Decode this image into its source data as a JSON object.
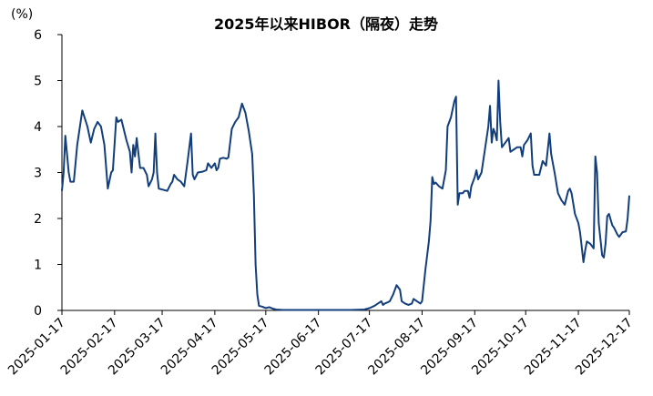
{
  "chart_data": {
    "type": "line",
    "title": "2025年以来HIBOR（隔夜）走势",
    "y_label": "(%)",
    "x": [
      "2025-01-17",
      "2025-01-18",
      "2025-01-19",
      "2025-01-21",
      "2025-01-22",
      "2025-01-24",
      "2025-01-26",
      "2025-01-29",
      "2025-02-01",
      "2025-02-03",
      "2025-02-05",
      "2025-02-07",
      "2025-02-09",
      "2025-02-11",
      "2025-02-13",
      "2025-02-15",
      "2025-02-16",
      "2025-02-18",
      "2025-02-19",
      "2025-02-21",
      "2025-02-24",
      "2025-02-26",
      "2025-02-27",
      "2025-02-28",
      "2025-03-01",
      "2025-03-02",
      "2025-03-04",
      "2025-03-06",
      "2025-03-08",
      "2025-03-09",
      "2025-03-11",
      "2025-03-12",
      "2025-03-13",
      "2025-03-14",
      "2025-03-15",
      "2025-03-18",
      "2025-03-20",
      "2025-03-22",
      "2025-03-23",
      "2025-03-24",
      "2025-03-26",
      "2025-03-28",
      "2025-03-30",
      "2025-04-01",
      "2025-04-03",
      "2025-04-04",
      "2025-04-05",
      "2025-04-07",
      "2025-04-10",
      "2025-04-12",
      "2025-04-13",
      "2025-04-15",
      "2025-04-17",
      "2025-04-18",
      "2025-04-19",
      "2025-04-20",
      "2025-04-22",
      "2025-04-24",
      "2025-04-25",
      "2025-04-27",
      "2025-04-29",
      "2025-05-01",
      "2025-05-03",
      "2025-05-05",
      "2025-05-07",
      "2025-05-09",
      "2025-05-10",
      "2025-05-11",
      "2025-05-12",
      "2025-05-13",
      "2025-05-15",
      "2025-05-17",
      "2025-05-19",
      "2025-05-21",
      "2025-05-23",
      "2025-05-27",
      "2025-06-16",
      "2025-07-06",
      "2025-07-14",
      "2025-07-17",
      "2025-07-20",
      "2025-07-22",
      "2025-07-24",
      "2025-07-25",
      "2025-07-26",
      "2025-07-28",
      "2025-07-29",
      "2025-07-31",
      "2025-08-02",
      "2025-08-04",
      "2025-08-05",
      "2025-08-07",
      "2025-08-09",
      "2025-08-11",
      "2025-08-12",
      "2025-08-14",
      "2025-08-16",
      "2025-08-17",
      "2025-08-19",
      "2025-08-21",
      "2025-08-22",
      "2025-08-23",
      "2025-08-24",
      "2025-08-25",
      "2025-08-27",
      "2025-08-29",
      "2025-08-31",
      "2025-09-01",
      "2025-09-03",
      "2025-09-05",
      "2025-09-06",
      "2025-09-07",
      "2025-09-08",
      "2025-09-10",
      "2025-09-11",
      "2025-09-13",
      "2025-09-14",
      "2025-09-15",
      "2025-09-17",
      "2025-09-18",
      "2025-09-19",
      "2025-09-21",
      "2025-09-23",
      "2025-09-25",
      "2025-09-26",
      "2025-09-27",
      "2025-09-28",
      "2025-09-29",
      "2025-09-30",
      "2025-10-01",
      "2025-10-02",
      "2025-10-03",
      "2025-10-05",
      "2025-10-07",
      "2025-10-08",
      "2025-10-10",
      "2025-10-12",
      "2025-10-14",
      "2025-10-15",
      "2025-10-16",
      "2025-10-18",
      "2025-10-20",
      "2025-10-21",
      "2025-10-22",
      "2025-10-25",
      "2025-10-27",
      "2025-10-29",
      "2025-10-31",
      "2025-11-01",
      "2025-11-03",
      "2025-11-05",
      "2025-11-07",
      "2025-11-09",
      "2025-11-11",
      "2025-11-12",
      "2025-11-13",
      "2025-11-15",
      "2025-11-17",
      "2025-11-18",
      "2025-11-20",
      "2025-11-21",
      "2025-11-22",
      "2025-11-24",
      "2025-11-26",
      "2025-11-27",
      "2025-11-28",
      "2025-11-29",
      "2025-12-01",
      "2025-12-02",
      "2025-12-03",
      "2025-12-04",
      "2025-12-05",
      "2025-12-07",
      "2025-12-08",
      "2025-12-10",
      "2025-12-11",
      "2025-12-13",
      "2025-12-15",
      "2025-12-16",
      "2025-12-17"
    ],
    "series": [
      {
        "color": "#123e7c",
        "values": [
          2.6,
          3.0,
          3.8,
          3.0,
          2.8,
          2.8,
          3.6,
          4.35,
          4.0,
          3.65,
          3.95,
          4.1,
          4.0,
          3.6,
          2.65,
          3.0,
          3.05,
          4.2,
          4.1,
          4.15,
          3.7,
          3.45,
          3.0,
          3.6,
          3.35,
          3.75,
          3.1,
          3.1,
          2.95,
          2.7,
          2.85,
          3.0,
          3.85,
          3.0,
          2.65,
          2.62,
          2.6,
          2.75,
          2.8,
          2.95,
          2.85,
          2.8,
          2.7,
          3.25,
          3.85,
          2.95,
          2.85,
          3.0,
          3.02,
          3.05,
          3.2,
          3.1,
          3.2,
          3.05,
          3.1,
          3.3,
          3.32,
          3.3,
          3.33,
          3.95,
          4.1,
          4.2,
          4.5,
          4.3,
          3.9,
          3.4,
          2.5,
          1.0,
          0.35,
          0.1,
          0.08,
          0.05,
          0.07,
          0.04,
          0.02,
          0.01,
          0.01,
          0.01,
          0.02,
          0.05,
          0.1,
          0.15,
          0.2,
          0.12,
          0.15,
          0.18,
          0.2,
          0.35,
          0.55,
          0.45,
          0.2,
          0.15,
          0.12,
          0.15,
          0.25,
          0.2,
          0.15,
          0.2,
          0.9,
          1.5,
          1.95,
          2.9,
          2.75,
          2.78,
          2.7,
          2.65,
          3.05,
          4.0,
          4.2,
          4.55,
          4.65,
          2.3,
          2.55,
          2.55,
          2.6,
          2.6,
          2.45,
          2.7,
          2.9,
          3.05,
          2.85,
          3.0,
          3.5,
          4.0,
          4.45,
          3.65,
          3.95,
          3.85,
          3.7,
          5.0,
          4.1,
          3.55,
          3.65,
          3.75,
          3.45,
          3.5,
          3.55,
          3.55,
          3.35,
          3.6,
          3.7,
          3.85,
          3.15,
          2.95,
          2.95,
          3.25,
          3.15,
          3.85,
          3.4,
          3.0,
          2.55,
          2.4,
          2.3,
          2.6,
          2.65,
          2.55,
          2.1,
          1.9,
          1.7,
          1.05,
          1.3,
          1.5,
          1.45,
          1.35,
          3.35,
          3.0,
          1.9,
          1.2,
          1.15,
          1.45,
          2.05,
          2.1,
          1.85,
          1.8,
          1.65,
          1.6,
          1.7,
          1.72,
          2.0,
          2.5
        ]
      }
    ],
    "xlim": [
      "2025-01-17",
      "2025-12-17"
    ],
    "xticks": [
      "2025-01-17",
      "2025-02-17",
      "2025-03-17",
      "2025-04-17",
      "2025-05-17",
      "2025-06-17",
      "2025-07-17",
      "2025-08-17",
      "2025-09-17",
      "2025-10-17",
      "2025-11-17",
      "2025-12-17"
    ],
    "ylim": [
      0,
      6
    ],
    "yticks": [
      0,
      1,
      2,
      3,
      4,
      5,
      6
    ],
    "grid": false
  }
}
